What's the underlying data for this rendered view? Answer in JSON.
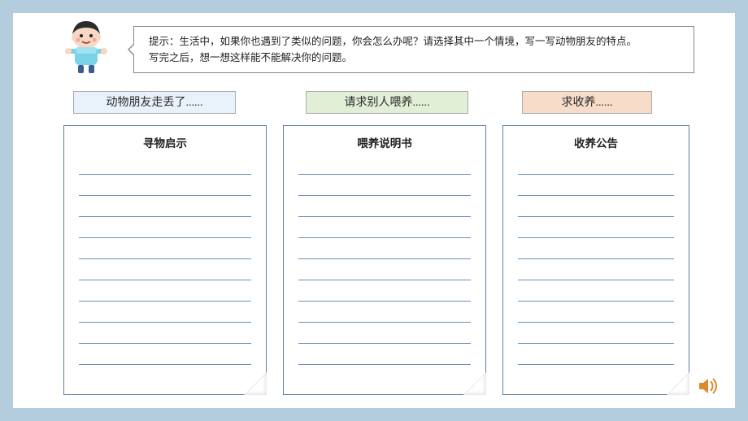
{
  "prompt": {
    "line1": "提示：生活中，如果你也遇到了类似的问题，你会怎么办呢？请选择其中一个情境，写一写动物朋友的特点。",
    "line2": "写完之后，想一想这样能不能解决你的问题。"
  },
  "categories": {
    "cat1": {
      "label": "动物朋友走丢了......",
      "bg": "#e9f1fb"
    },
    "cat2": {
      "label": "请求别人喂养......",
      "bg": "#e1efd6"
    },
    "cat3": {
      "label": "求收养......",
      "bg": "#f6dcc9"
    }
  },
  "sheets": {
    "s1": {
      "title": "寻物启示",
      "rule_count": 10
    },
    "s2": {
      "title": "喂养说明书",
      "rule_count": 10
    },
    "s3": {
      "title": "收养公告",
      "rule_count": 10
    }
  },
  "style": {
    "page_bg": "#b3cdde",
    "stage_bg": "#ffffff",
    "sheet_border": "#5f7fa8",
    "rule_color": "#6b8fbf",
    "sound_color": "#d98b2e"
  }
}
